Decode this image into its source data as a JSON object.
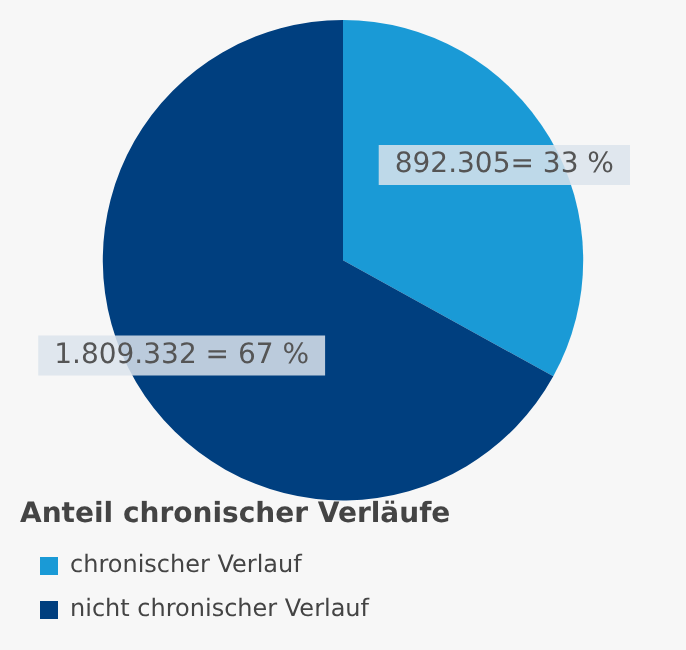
{
  "chart_data": {
    "type": "pie",
    "legend_title": "Anteil chronischer Verläufe",
    "legend": "bottom left",
    "categories": [
      "chronischer Verlauf",
      "nicht chronischer Verlauf"
    ],
    "values": [
      892305,
      1809332
    ],
    "value_labels": [
      "892.305= 33 %",
      "1.809.332 = 67 %"
    ],
    "colors": [
      "#1a9ad6",
      "#003f7f"
    ]
  }
}
